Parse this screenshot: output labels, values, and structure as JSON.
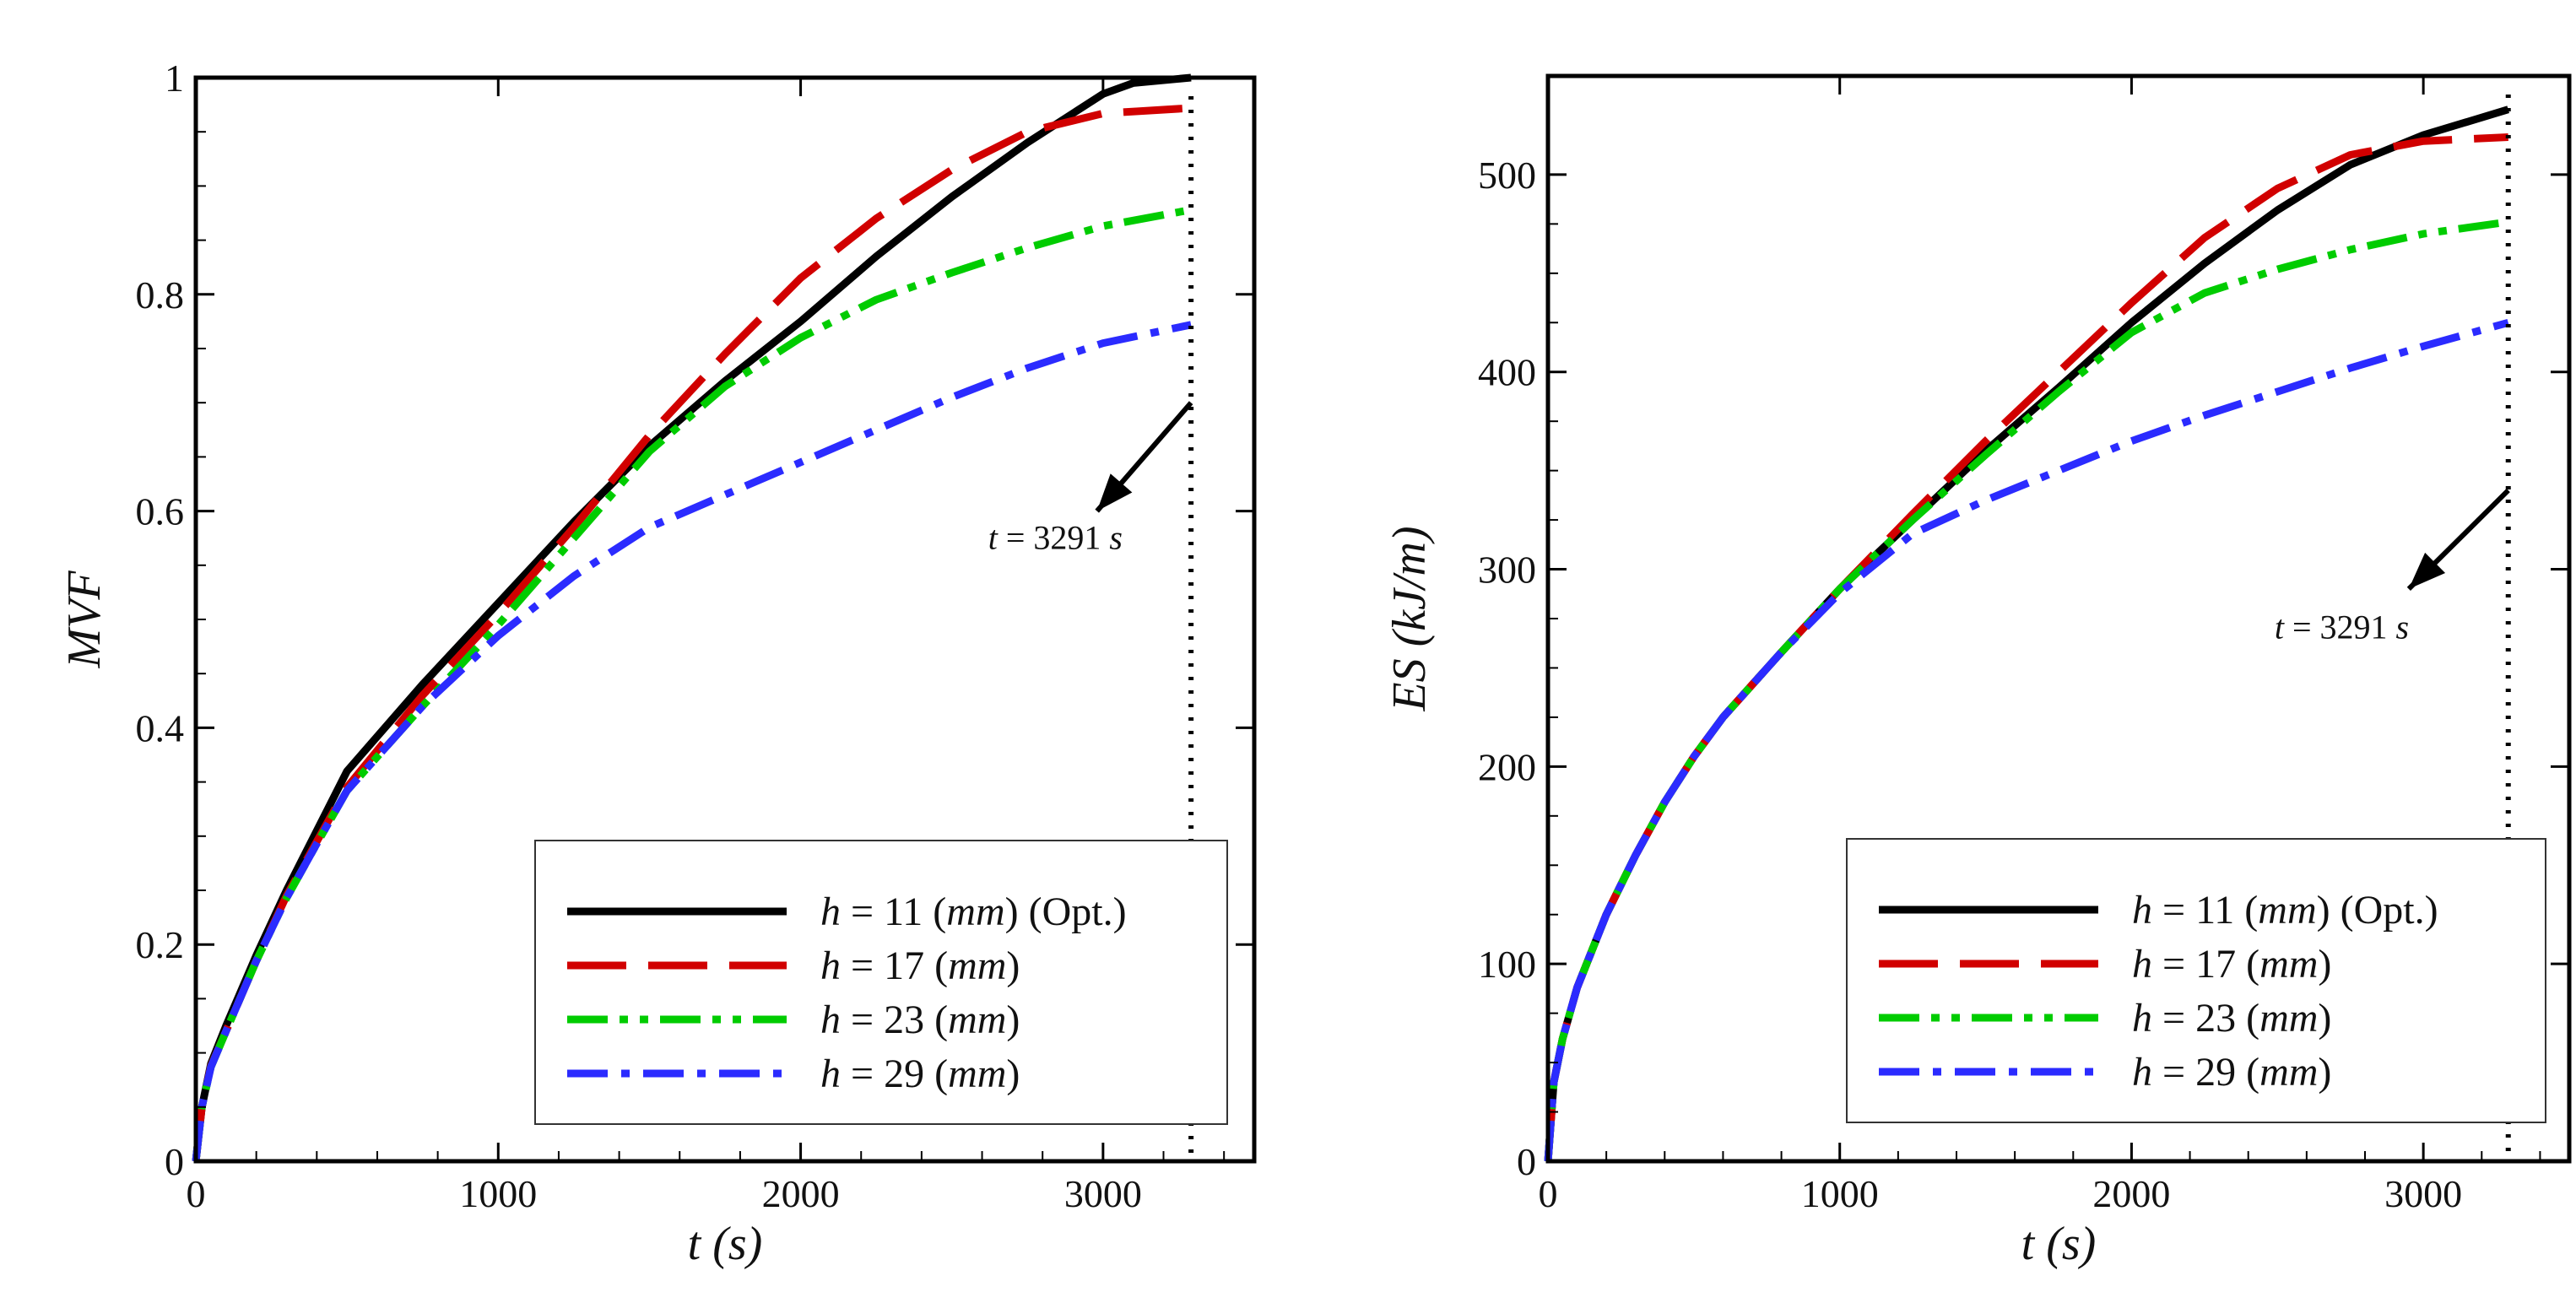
{
  "chart_data": [
    {
      "id": "left",
      "type": "line",
      "title": "",
      "xlabel_var": "t",
      "xlabel_unit": "s",
      "ylabel_parts": [
        "MVF"
      ],
      "xlim": [
        0,
        3500
      ],
      "ylim": [
        0,
        1.0
      ],
      "x_ticks": [
        0,
        1000,
        2000,
        3000
      ],
      "x_tick_labels": [
        "0",
        "1000",
        "2000",
        "3000"
      ],
      "y_ticks": [
        0,
        0.2,
        0.4,
        0.6,
        0.8,
        1.0
      ],
      "y_tick_labels": [
        "0",
        "0.2",
        "0.4",
        "0.6",
        "0.8",
        "1"
      ],
      "vline_x": 3291,
      "annotation": {
        "var": "t",
        "eq": " = 3291 ",
        "unit": "s",
        "arrow_from": [
          3291,
          0.7
        ],
        "arrow_to": [
          2980,
          0.6
        ],
        "text_at": [
          2620,
          0.565
        ]
      },
      "legend_placement": "bottom-right",
      "series": [
        {
          "name_var": "h",
          "name_rest": " = 11 (",
          "name_unit": "mm",
          "name_tail": ") (Opt.)",
          "color": "#000000",
          "dash": "solid",
          "x": [
            0,
            20,
            50,
            100,
            200,
            300,
            400,
            500,
            750,
            1000,
            1250,
            1500,
            1750,
            2000,
            2250,
            2500,
            2750,
            3000,
            3100,
            3291
          ],
          "y": [
            0,
            0.05,
            0.09,
            0.125,
            0.19,
            0.25,
            0.305,
            0.36,
            0.44,
            0.515,
            0.59,
            0.66,
            0.72,
            0.775,
            0.835,
            0.89,
            0.94,
            0.985,
            0.995,
            1.0
          ]
        },
        {
          "name_var": "h",
          "name_rest": " = 17 (",
          "name_unit": "mm",
          "name_tail": ")",
          "color": "#d10000",
          "dash": "long",
          "x": [
            0,
            20,
            50,
            100,
            200,
            300,
            400,
            500,
            750,
            1000,
            1250,
            1500,
            1750,
            2000,
            2250,
            2500,
            2750,
            3000,
            3291
          ],
          "y": [
            0,
            0.05,
            0.088,
            0.12,
            0.185,
            0.245,
            0.295,
            0.345,
            0.43,
            0.505,
            0.585,
            0.67,
            0.745,
            0.815,
            0.87,
            0.915,
            0.95,
            0.967,
            0.972
          ]
        },
        {
          "name_var": "h",
          "name_rest": " = 23 (",
          "name_unit": "mm",
          "name_tail": ")",
          "color": "#00cc00",
          "dash": "dashdotdot",
          "x": [
            0,
            20,
            50,
            100,
            200,
            300,
            400,
            500,
            750,
            1000,
            1250,
            1500,
            1750,
            2000,
            2250,
            2500,
            2750,
            3000,
            3291
          ],
          "y": [
            0,
            0.05,
            0.087,
            0.12,
            0.185,
            0.243,
            0.293,
            0.342,
            0.42,
            0.495,
            0.575,
            0.655,
            0.715,
            0.76,
            0.795,
            0.82,
            0.843,
            0.863,
            0.878
          ]
        },
        {
          "name_var": "h",
          "name_rest": " = 29 (",
          "name_unit": "mm",
          "name_tail": ")",
          "color": "#2b2bff",
          "dash": "dashdot",
          "x": [
            0,
            20,
            50,
            100,
            200,
            300,
            400,
            500,
            750,
            1000,
            1250,
            1500,
            1750,
            2000,
            2250,
            2500,
            2750,
            3000,
            3291
          ],
          "y": [
            0,
            0.05,
            0.087,
            0.12,
            0.185,
            0.243,
            0.293,
            0.342,
            0.42,
            0.485,
            0.54,
            0.585,
            0.615,
            0.645,
            0.675,
            0.705,
            0.732,
            0.755,
            0.772
          ]
        }
      ]
    },
    {
      "id": "right",
      "type": "line",
      "title": "",
      "xlabel_var": "t",
      "xlabel_unit": "s",
      "ylabel_parts": [
        "ES",
        " (",
        "kJ/m",
        ")"
      ],
      "xlim": [
        0,
        3500
      ],
      "ylim": [
        0,
        550
      ],
      "x_ticks": [
        0,
        1000,
        2000,
        3000
      ],
      "x_tick_labels": [
        "0",
        "1000",
        "2000",
        "3000"
      ],
      "y_ticks": [
        0,
        100,
        200,
        300,
        400,
        500
      ],
      "y_tick_labels": [
        "0",
        "100",
        "200",
        "300",
        "400",
        "500"
      ],
      "vline_x": 3291,
      "annotation": {
        "var": "t",
        "eq": " = 3291 ",
        "unit": "s",
        "arrow_from": [
          3291,
          340
        ],
        "arrow_to": [
          2950,
          290
        ],
        "text_at": [
          2490,
          265
        ]
      },
      "legend_placement": "bottom-right",
      "series": [
        {
          "name_var": "h",
          "name_rest": " = 11 (",
          "name_unit": "mm",
          "name_tail": ") (Opt.)",
          "color": "#000000",
          "dash": "solid",
          "x": [
            0,
            20,
            50,
            100,
            200,
            300,
            400,
            500,
            600,
            800,
            1000,
            1250,
            1500,
            1750,
            2000,
            2250,
            2500,
            2750,
            3000,
            3291
          ],
          "y": [
            0,
            40,
            62,
            88,
            125,
            155,
            182,
            205,
            225,
            258,
            290,
            325,
            360,
            392,
            425,
            455,
            482,
            505,
            520,
            533
          ]
        },
        {
          "name_var": "h",
          "name_rest": " = 17 (",
          "name_unit": "mm",
          "name_tail": ")",
          "color": "#d10000",
          "dash": "long",
          "x": [
            0,
            20,
            50,
            100,
            200,
            300,
            400,
            500,
            600,
            800,
            1000,
            1250,
            1500,
            1750,
            2000,
            2250,
            2500,
            2750,
            3000,
            3291
          ],
          "y": [
            0,
            40,
            62,
            88,
            125,
            155,
            182,
            205,
            225,
            258,
            290,
            328,
            365,
            400,
            435,
            468,
            493,
            510,
            517,
            519
          ]
        },
        {
          "name_var": "h",
          "name_rest": " = 23 (",
          "name_unit": "mm",
          "name_tail": ")",
          "color": "#00cc00",
          "dash": "dashdotdot",
          "x": [
            0,
            20,
            50,
            100,
            200,
            300,
            400,
            500,
            600,
            800,
            1000,
            1250,
            1500,
            1750,
            2000,
            2250,
            2500,
            2750,
            3000,
            3291
          ],
          "y": [
            0,
            40,
            62,
            88,
            125,
            155,
            182,
            205,
            225,
            258,
            290,
            325,
            358,
            390,
            420,
            440,
            452,
            462,
            470,
            476
          ]
        },
        {
          "name_var": "h",
          "name_rest": " = 29 (",
          "name_unit": "mm",
          "name_tail": ")",
          "color": "#2b2bff",
          "dash": "dashdot",
          "x": [
            0,
            20,
            50,
            100,
            200,
            300,
            400,
            500,
            600,
            800,
            1000,
            1250,
            1500,
            1750,
            2000,
            2250,
            2500,
            2750,
            3000,
            3291
          ],
          "y": [
            0,
            40,
            62,
            88,
            125,
            155,
            182,
            205,
            225,
            258,
            288,
            318,
            335,
            350,
            365,
            378,
            390,
            402,
            413,
            425
          ]
        }
      ]
    }
  ]
}
